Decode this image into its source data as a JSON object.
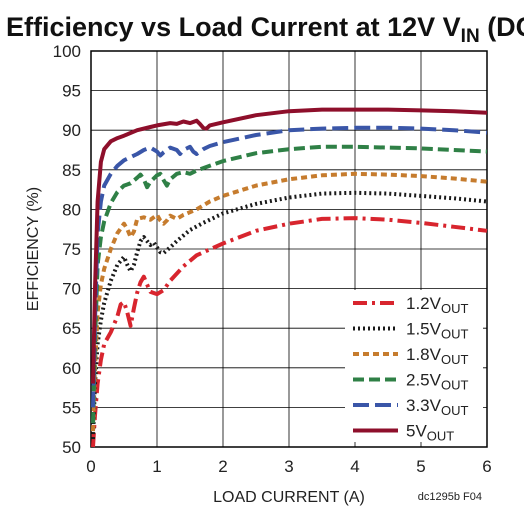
{
  "chart_data": {
    "type": "line",
    "title": "Efficiency vs Load Current at 12V",
    "title_sub_main": "V",
    "title_sub_script": "IN",
    "title_suffix": "(DCM)",
    "xlabel": "LOAD CURRENT (A)",
    "ylabel": "EFFICIENCY (%)",
    "xlim": [
      0,
      6
    ],
    "ylim": [
      50,
      100
    ],
    "x_ticks": [
      "0",
      "1",
      "2",
      "3",
      "4",
      "5",
      "6"
    ],
    "y_ticks": [
      "50",
      "55",
      "60",
      "65",
      "70",
      "75",
      "80",
      "85",
      "90",
      "95",
      "100"
    ],
    "grid": true,
    "legend_position": "bottom-right",
    "note": "dc1295b F04",
    "series": [
      {
        "name": "1.2V",
        "name_sub": "OUT",
        "color": "#d8252e",
        "dash": "14 5 3 5",
        "points": [
          [
            0.03,
            50
          ],
          [
            0.06,
            54
          ],
          [
            0.1,
            58
          ],
          [
            0.15,
            61
          ],
          [
            0.2,
            63
          ],
          [
            0.3,
            64.5
          ],
          [
            0.4,
            66.5
          ],
          [
            0.45,
            68
          ],
          [
            0.5,
            68.3
          ],
          [
            0.55,
            67
          ],
          [
            0.6,
            65.3
          ],
          [
            0.65,
            67.5
          ],
          [
            0.7,
            69.5
          ],
          [
            0.75,
            70.8
          ],
          [
            0.8,
            71.5
          ],
          [
            0.85,
            70.5
          ],
          [
            0.9,
            69.6
          ],
          [
            1.0,
            69.3
          ],
          [
            1.1,
            69.8
          ],
          [
            1.2,
            71
          ],
          [
            1.4,
            72.8
          ],
          [
            1.6,
            74.2
          ],
          [
            2.0,
            75.7
          ],
          [
            2.5,
            77.3
          ],
          [
            3.0,
            78.2
          ],
          [
            3.5,
            78.8
          ],
          [
            4.0,
            78.9
          ],
          [
            4.5,
            78.7
          ],
          [
            5.0,
            78.3
          ],
          [
            5.5,
            77.8
          ],
          [
            6.0,
            77.3
          ]
        ]
      },
      {
        "name": "1.5V",
        "name_sub": "OUT",
        "color": "#1a1a1a",
        "dash": "2 3",
        "points": [
          [
            0.03,
            51
          ],
          [
            0.06,
            58
          ],
          [
            0.1,
            63
          ],
          [
            0.15,
            66
          ],
          [
            0.2,
            68.2
          ],
          [
            0.3,
            71
          ],
          [
            0.4,
            73
          ],
          [
            0.5,
            74
          ],
          [
            0.55,
            73
          ],
          [
            0.6,
            72.2
          ],
          [
            0.65,
            73
          ],
          [
            0.7,
            74.6
          ],
          [
            0.75,
            76
          ],
          [
            0.8,
            76.5
          ],
          [
            0.85,
            76
          ],
          [
            0.9,
            75.5
          ],
          [
            0.95,
            75.8
          ],
          [
            1.0,
            75.2
          ],
          [
            1.05,
            74.6
          ],
          [
            1.1,
            74.5
          ],
          [
            1.2,
            75.2
          ],
          [
            1.3,
            76
          ],
          [
            1.5,
            77.4
          ],
          [
            1.7,
            78.3
          ],
          [
            2.0,
            79.5
          ],
          [
            2.5,
            80.7
          ],
          [
            3.0,
            81.5
          ],
          [
            3.5,
            82
          ],
          [
            4.0,
            82.1
          ],
          [
            4.5,
            82
          ],
          [
            5.0,
            81.7
          ],
          [
            5.5,
            81.4
          ],
          [
            6.0,
            81
          ]
        ]
      },
      {
        "name": "1.8V",
        "name_sub": "OUT",
        "color": "#c67c2e",
        "dash": "6 4",
        "points": [
          [
            0.03,
            52
          ],
          [
            0.06,
            60
          ],
          [
            0.1,
            67
          ],
          [
            0.15,
            70.5
          ],
          [
            0.2,
            72.5
          ],
          [
            0.3,
            75
          ],
          [
            0.4,
            77
          ],
          [
            0.5,
            78.2
          ],
          [
            0.55,
            77.5
          ],
          [
            0.6,
            76.5
          ],
          [
            0.65,
            77.2
          ],
          [
            0.7,
            78.8
          ],
          [
            0.8,
            79
          ],
          [
            0.9,
            78.7
          ],
          [
            1.0,
            79.3
          ],
          [
            1.05,
            78.6
          ],
          [
            1.1,
            78.2
          ],
          [
            1.15,
            78.6
          ],
          [
            1.2,
            79.2
          ],
          [
            1.3,
            78.8
          ],
          [
            1.4,
            79.3
          ],
          [
            1.6,
            80
          ],
          [
            1.8,
            81
          ],
          [
            2.0,
            81.7
          ],
          [
            2.5,
            83
          ],
          [
            3.0,
            83.8
          ],
          [
            3.5,
            84.3
          ],
          [
            4.0,
            84.5
          ],
          [
            4.5,
            84.4
          ],
          [
            5.0,
            84.2
          ],
          [
            5.5,
            83.9
          ],
          [
            6.0,
            83.5
          ]
        ]
      },
      {
        "name": "2.5V",
        "name_sub": "OUT",
        "color": "#2f8046",
        "dash": "11 5",
        "points": [
          [
            0.03,
            53
          ],
          [
            0.06,
            63
          ],
          [
            0.1,
            73
          ],
          [
            0.15,
            76.5
          ],
          [
            0.2,
            78.5
          ],
          [
            0.3,
            80.8
          ],
          [
            0.4,
            82.2
          ],
          [
            0.5,
            83
          ],
          [
            0.6,
            83.3
          ],
          [
            0.7,
            84
          ],
          [
            0.75,
            84.4
          ],
          [
            0.8,
            83.8
          ],
          [
            0.85,
            82.8
          ],
          [
            0.9,
            83.5
          ],
          [
            1.0,
            84.3
          ],
          [
            1.05,
            84.5
          ],
          [
            1.1,
            83.7
          ],
          [
            1.15,
            83
          ],
          [
            1.2,
            83.8
          ],
          [
            1.3,
            84.5
          ],
          [
            1.4,
            84.7
          ],
          [
            1.5,
            84.5
          ],
          [
            1.6,
            84.9
          ],
          [
            1.8,
            85.5
          ],
          [
            2.0,
            86.1
          ],
          [
            2.5,
            87.1
          ],
          [
            3.0,
            87.6
          ],
          [
            3.5,
            87.9
          ],
          [
            4.0,
            87.9
          ],
          [
            4.5,
            87.8
          ],
          [
            5.0,
            87.7
          ],
          [
            5.5,
            87.5
          ],
          [
            6.0,
            87.3
          ]
        ]
      },
      {
        "name": "3.3V",
        "name_sub": "OUT",
        "color": "#3a56a8",
        "dash": "16 6",
        "points": [
          [
            0.03,
            55
          ],
          [
            0.06,
            66
          ],
          [
            0.1,
            77
          ],
          [
            0.15,
            81
          ],
          [
            0.2,
            83
          ],
          [
            0.3,
            84.5
          ],
          [
            0.4,
            85.5
          ],
          [
            0.5,
            86.2
          ],
          [
            0.7,
            87
          ],
          [
            0.8,
            87.5
          ],
          [
            0.9,
            87.8
          ],
          [
            1.0,
            87.3
          ],
          [
            1.05,
            86.8
          ],
          [
            1.1,
            87.2
          ],
          [
            1.2,
            87.8
          ],
          [
            1.3,
            87.5
          ],
          [
            1.35,
            87
          ],
          [
            1.4,
            87.5
          ],
          [
            1.5,
            87.9
          ],
          [
            1.55,
            87.3
          ],
          [
            1.6,
            87
          ],
          [
            1.7,
            87.6
          ],
          [
            1.8,
            88
          ],
          [
            2.0,
            88.5
          ],
          [
            2.5,
            89.4
          ],
          [
            3.0,
            90
          ],
          [
            3.5,
            90.2
          ],
          [
            4.0,
            90.3
          ],
          [
            4.5,
            90.3
          ],
          [
            5.0,
            90.2
          ],
          [
            5.5,
            90
          ],
          [
            6.0,
            89.7
          ]
        ]
      },
      {
        "name": "5V",
        "name_sub": "OUT",
        "color": "#8e0f2b",
        "dash": "",
        "points": [
          [
            0.03,
            58
          ],
          [
            0.06,
            70
          ],
          [
            0.1,
            81
          ],
          [
            0.15,
            86
          ],
          [
            0.2,
            87.6
          ],
          [
            0.3,
            88.6
          ],
          [
            0.4,
            89
          ],
          [
            0.5,
            89.3
          ],
          [
            0.7,
            90
          ],
          [
            0.9,
            90.4
          ],
          [
            1.0,
            90.6
          ],
          [
            1.2,
            90.9
          ],
          [
            1.3,
            90.8
          ],
          [
            1.4,
            91.1
          ],
          [
            1.5,
            90.9
          ],
          [
            1.6,
            91.2
          ],
          [
            1.65,
            90.8
          ],
          [
            1.7,
            90.3
          ],
          [
            1.75,
            90.2
          ],
          [
            1.8,
            90.6
          ],
          [
            2.0,
            91
          ],
          [
            2.5,
            91.9
          ],
          [
            3.0,
            92.4
          ],
          [
            3.5,
            92.6
          ],
          [
            4.0,
            92.6
          ],
          [
            4.5,
            92.6
          ],
          [
            5.0,
            92.5
          ],
          [
            5.5,
            92.4
          ],
          [
            6.0,
            92.2
          ]
        ]
      }
    ]
  }
}
